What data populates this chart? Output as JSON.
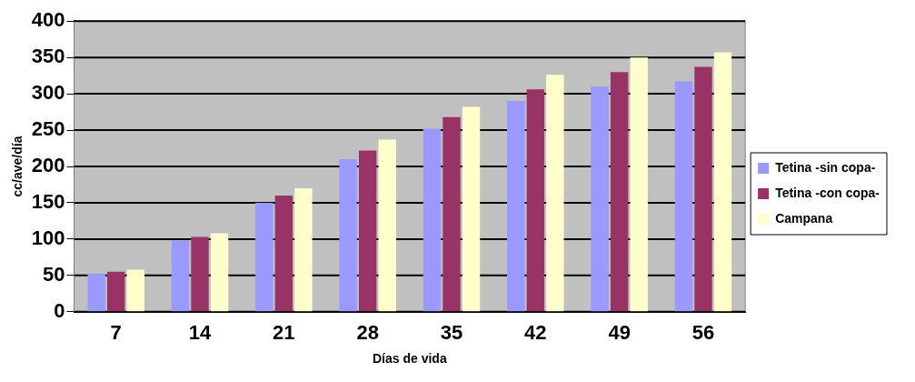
{
  "chart_data": {
    "type": "bar",
    "xlabel": "Días de vida",
    "ylabel": "cc/ave/día",
    "categories": [
      "7",
      "14",
      "21",
      "28",
      "35",
      "42",
      "49",
      "56"
    ],
    "series": [
      {
        "name": "Tetina -sin copa-",
        "color": "#9999ff",
        "values": [
          52,
          98,
          150,
          210,
          252,
          290,
          310,
          317
        ]
      },
      {
        "name": "Tetina -con copa-",
        "color": "#993366",
        "values": [
          55,
          103,
          160,
          222,
          268,
          306,
          330,
          337
        ]
      },
      {
        "name": "Campana",
        "color": "#ffffcc",
        "values": [
          58,
          108,
          170,
          237,
          282,
          326,
          350,
          357
        ]
      }
    ],
    "ylim": [
      0,
      400
    ],
    "yticks": [
      0,
      50,
      100,
      150,
      200,
      250,
      300,
      350,
      400
    ],
    "grid": "y",
    "legend": "right"
  }
}
